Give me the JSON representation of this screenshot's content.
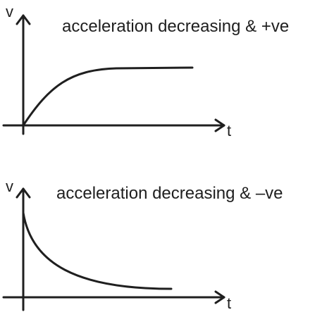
{
  "graphs": [
    {
      "caption": "acceleration decreasing & +ve",
      "y_axis_label": "v",
      "x_axis_label": "t",
      "curve_shape": "rising-concave-down-to-plateau"
    },
    {
      "caption": "acceleration decreasing & –ve",
      "y_axis_label": "v",
      "x_axis_label": "t",
      "curve_shape": "falling-concave-up-to-plateau"
    }
  ],
  "colors": {
    "ink": "#1f1f1f",
    "background": "#ffffff"
  }
}
